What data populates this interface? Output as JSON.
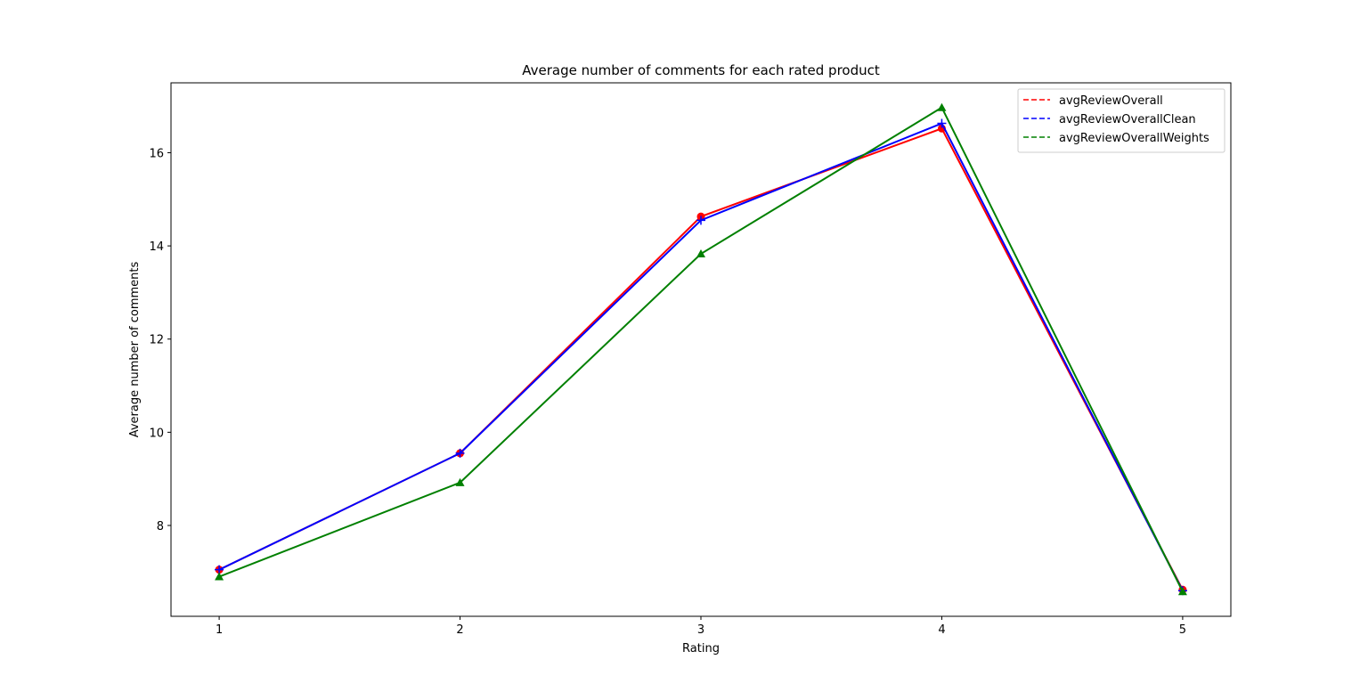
{
  "chart_data": {
    "type": "line",
    "title": "Average number of comments for each rated product",
    "xlabel": "Rating",
    "ylabel": "Average number of comments",
    "x": [
      1,
      2,
      3,
      4,
      5
    ],
    "xlim": [
      0.8,
      5.2
    ],
    "ylim": [
      6.05,
      17.5
    ],
    "xticks": [
      1,
      2,
      3,
      4,
      5
    ],
    "yticks": [
      8,
      10,
      12,
      14,
      16
    ],
    "grid": false,
    "legend_position": "top-right",
    "series": [
      {
        "name": "avgReviewOverall",
        "values": [
          7.05,
          9.55,
          14.63,
          16.52,
          6.62
        ],
        "color": "#ff0000",
        "marker": "circle"
      },
      {
        "name": "avgReviewOverallClean",
        "values": [
          7.05,
          9.55,
          14.55,
          16.63,
          6.6
        ],
        "color": "#0000ff",
        "marker": "plus"
      },
      {
        "name": "avgReviewOverallWeights",
        "values": [
          6.9,
          8.92,
          13.83,
          16.97,
          6.58
        ],
        "color": "#008000",
        "marker": "triangle"
      }
    ]
  }
}
